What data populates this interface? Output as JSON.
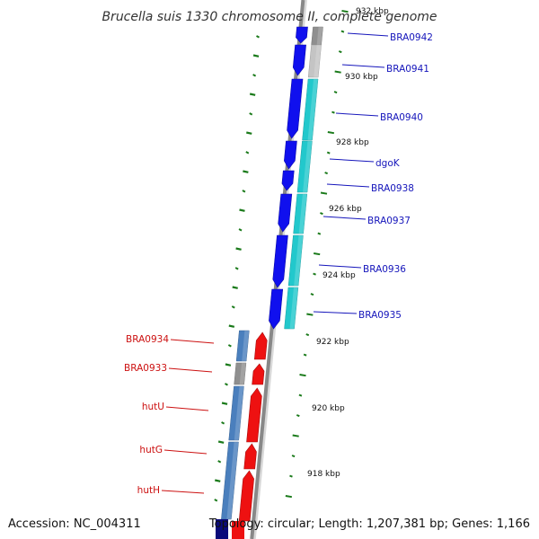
{
  "title": "Brucella suis 1330 chromosome II, complete genome",
  "footer": {
    "accession": "Accession: NC_004311",
    "summary": "Topology: circular; Length: 1,207,381 bp; Genes: 1,166"
  },
  "colors": {
    "forward_gene": "#1010ee",
    "reverse_gene": "#ee1111",
    "forward_label": "#1515bb",
    "reverse_label": "#cc1111",
    "backbone": "#888888",
    "tick": "#1a7a1a",
    "cds_cyan": "#22c8cc",
    "cds_steel": "#4a7fbd",
    "gray_feature": "#8f8f8f"
  },
  "ticks": [
    {
      "label": "932 kbp"
    },
    {
      "label": "930 kbp"
    },
    {
      "label": "928 kbp"
    },
    {
      "label": "926 kbp"
    },
    {
      "label": "924 kbp"
    },
    {
      "label": "922 kbp"
    },
    {
      "label": "920 kbp"
    },
    {
      "label": "918 kbp"
    }
  ],
  "forward_genes": [
    {
      "label": "BRA0942"
    },
    {
      "label": "BRA0941"
    },
    {
      "label": "BRA0940"
    },
    {
      "label": "dgoK"
    },
    {
      "label": "BRA0938"
    },
    {
      "label": "BRA0937"
    },
    {
      "label": "BRA0936"
    },
    {
      "label": "BRA0935"
    }
  ],
  "reverse_genes": [
    {
      "label": "BRA0934"
    },
    {
      "label": "BRA0933"
    },
    {
      "label": "hutU"
    },
    {
      "label": "hutG"
    },
    {
      "label": "hutH"
    }
  ]
}
